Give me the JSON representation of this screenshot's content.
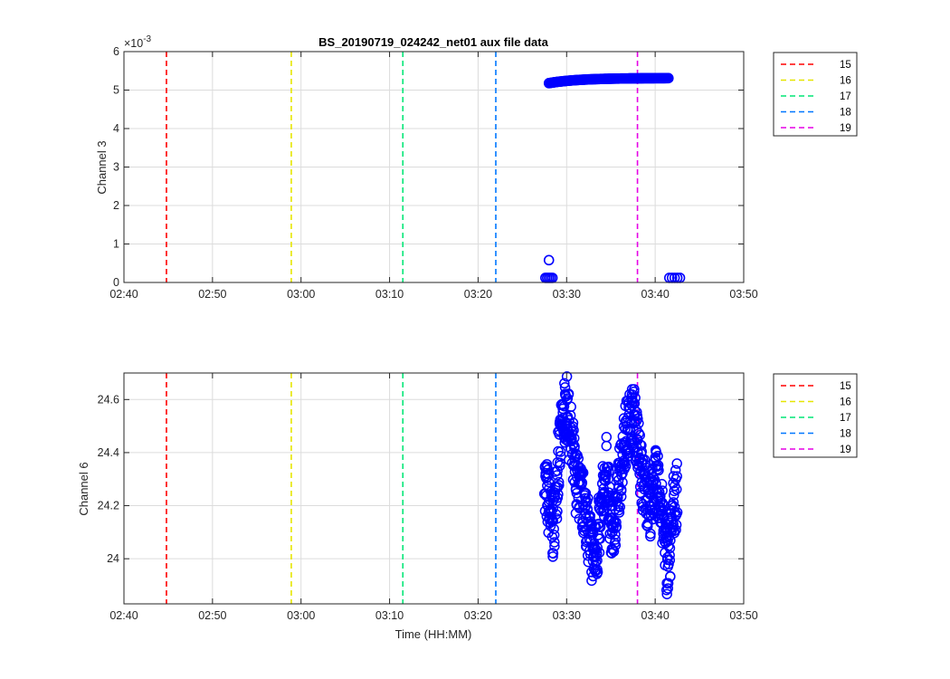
{
  "chart_data": [
    {
      "type": "scatter",
      "title": "BS_20190719_024242_net01 aux file data",
      "ylabel": "Channel 3",
      "xlabel": "",
      "xlim": [
        "02:40",
        "03:50"
      ],
      "ylim": [
        0,
        0.006
      ],
      "y_exponent_label": "×10",
      "y_exponent_power": "-3",
      "y_exponent": -3,
      "xticks": [
        "02:40",
        "02:50",
        "03:00",
        "03:10",
        "03:20",
        "03:30",
        "03:40",
        "03:50"
      ],
      "yticks": [
        "0",
        "1",
        "2",
        "3",
        "4",
        "5",
        "6"
      ],
      "grid": true,
      "legend_location": "outside-top-right",
      "marker_color": "#0000ff",
      "vlines": [
        {
          "label": "15",
          "x": "02:44.8",
          "color": "#ff0000"
        },
        {
          "label": "16",
          "x": "02:58.9",
          "color": "#e6e600"
        },
        {
          "label": "17",
          "x": "03:11.5",
          "color": "#00e676"
        },
        {
          "label": "18",
          "x": "03:22.0",
          "color": "#0077ff"
        },
        {
          "label": "19",
          "x": "03:38.0",
          "color": "#e600e6"
        }
      ],
      "series": [
        {
          "x": [
            "03:27.6",
            "03:27.8",
            "03:28.0",
            "03:28.2",
            "03:28.4",
            "03:28.0",
            "03:41.6",
            "03:41.9",
            "03:42.2",
            "03:42.5",
            "03:42.8"
          ],
          "y": [
            0.00012,
            0.00012,
            0.00012,
            0.00012,
            0.00012,
            0.00058,
            0.00012,
            0.00012,
            0.00012,
            0.00012,
            0.00012
          ]
        },
        {
          "x_range": [
            "03:28.0",
            "03:41.5"
          ],
          "y_range": [
            0.00518,
            0.00531
          ],
          "shape": "rising-saturating band"
        }
      ]
    },
    {
      "type": "scatter",
      "title": "",
      "ylabel": "Channel 6",
      "xlabel": "Time (HH:MM)",
      "xlim": [
        "02:40",
        "03:50"
      ],
      "ylim": [
        23.83,
        24.7
      ],
      "xticks": [
        "02:40",
        "02:50",
        "03:00",
        "03:10",
        "03:20",
        "03:30",
        "03:40",
        "03:50"
      ],
      "yticks": [
        "24",
        "24.2",
        "24.4",
        "24.6"
      ],
      "grid": true,
      "legend_location": "outside-top-right",
      "marker_color": "#0000ff",
      "vlines": [
        {
          "label": "15",
          "x": "02:44.8",
          "color": "#ff0000"
        },
        {
          "label": "16",
          "x": "02:58.9",
          "color": "#e6e600"
        },
        {
          "label": "17",
          "x": "03:11.5",
          "color": "#00e676"
        },
        {
          "label": "18",
          "x": "03:22.0",
          "color": "#0077ff"
        },
        {
          "label": "19",
          "x": "03:38.0",
          "color": "#e600e6"
        }
      ],
      "series": [
        {
          "x": [
            "03:27.5",
            "03:28.0",
            "03:28.5",
            "03:29.0",
            "03:29.5",
            "03:30.0",
            "03:30.5",
            "03:31.0",
            "03:31.5",
            "03:32.0",
            "03:32.5",
            "03:33.0",
            "03:33.5",
            "03:34.0",
            "03:34.5",
            "03:35.0",
            "03:35.5",
            "03:36.0",
            "03:36.5",
            "03:37.0",
            "03:37.5",
            "03:38.0",
            "03:38.5",
            "03:39.0",
            "03:39.5",
            "03:40.0",
            "03:40.5",
            "03:41.0",
            "03:41.5",
            "03:42.0",
            "03:42.5"
          ],
          "y": [
            24.3,
            24.2,
            24.1,
            24.35,
            24.5,
            24.58,
            24.45,
            24.3,
            24.25,
            24.2,
            24.1,
            24.0,
            24.05,
            24.2,
            24.35,
            24.1,
            24.15,
            24.3,
            24.45,
            24.5,
            24.55,
            24.45,
            24.3,
            24.25,
            24.2,
            24.3,
            24.25,
            24.1,
            23.95,
            24.2,
            24.25
          ]
        }
      ]
    }
  ]
}
